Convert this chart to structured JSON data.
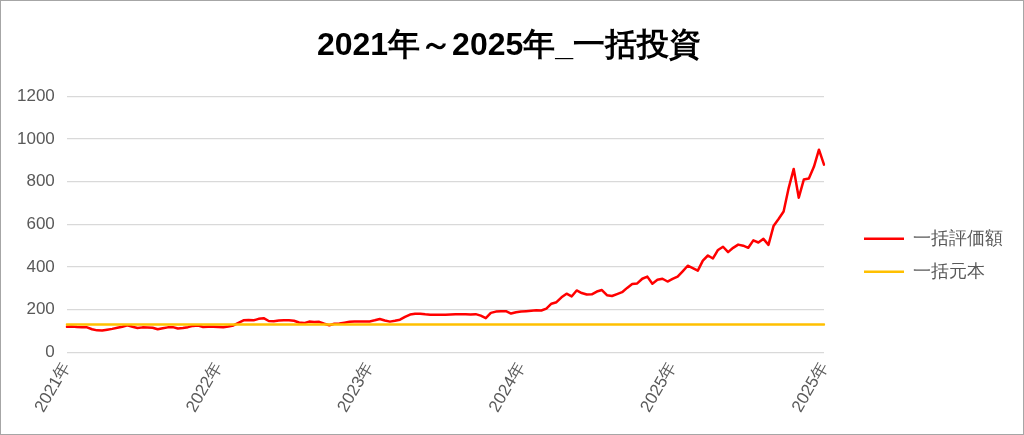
{
  "chart_data": {
    "type": "line",
    "title": "2021年～2025年_一括投資",
    "categories": [
      "2021年",
      null,
      null,
      null,
      null,
      null,
      null,
      null,
      null,
      null,
      null,
      null,
      null,
      null,
      null,
      null,
      null,
      null,
      null,
      null,
      null,
      null,
      null,
      null,
      null,
      null,
      null,
      null,
      null,
      null,
      "2022年",
      null,
      null,
      null,
      null,
      null,
      null,
      null,
      null,
      null,
      null,
      null,
      null,
      null,
      null,
      null,
      null,
      null,
      null,
      null,
      null,
      null,
      null,
      null,
      null,
      null,
      null,
      null,
      null,
      null,
      "2023年",
      null,
      null,
      null,
      null,
      null,
      null,
      null,
      null,
      null,
      null,
      null,
      null,
      null,
      null,
      null,
      null,
      null,
      null,
      null,
      null,
      null,
      null,
      null,
      null,
      null,
      null,
      null,
      null,
      null,
      "2024年",
      null,
      null,
      null,
      null,
      null,
      null,
      null,
      null,
      null,
      null,
      null,
      null,
      null,
      null,
      null,
      null,
      null,
      null,
      null,
      null,
      null,
      null,
      null,
      null,
      null,
      null,
      null,
      null,
      null,
      "2025年",
      null,
      null,
      null,
      null,
      null,
      null,
      null,
      null,
      null,
      null,
      null,
      null,
      null,
      null,
      null,
      null,
      null,
      null,
      null,
      null,
      null,
      null,
      null,
      null,
      null,
      null,
      null,
      null,
      null,
      "2025年"
    ],
    "series": [
      {
        "name": "一括評価額",
        "color": "#ff0000",
        "values": [
          120,
          121,
          119,
          118,
          117,
          108,
          103,
          102,
          106,
          110,
          115,
          120,
          127,
          120,
          114,
          117,
          116,
          115,
          108,
          113,
          117,
          118,
          112,
          114,
          118,
          124,
          126,
          119,
          120,
          120,
          119,
          118,
          121,
          126,
          138,
          150,
          151,
          150,
          157,
          160,
          147,
          146,
          149,
          150,
          150,
          148,
          140,
          137,
          144,
          142,
          143,
          134,
          127,
          134,
          135,
          139,
          143,
          144,
          145,
          145,
          145,
          150,
          156,
          149,
          144,
          148,
          153,
          166,
          177,
          181,
          181,
          178,
          176,
          176,
          176,
          176,
          177,
          178,
          179,
          178,
          177,
          179,
          172,
          160,
          185,
          191,
          193,
          193,
          182,
          188,
          191,
          193,
          195,
          197,
          196,
          205,
          228,
          235,
          258,
          275,
          262,
          290,
          278,
          271,
          272,
          285,
          292,
          268,
          264,
          273,
          282,
          302,
          320,
          323,
          345,
          355,
          322,
          340,
          345,
          332,
          344,
          355,
          380,
          406,
          395,
          383,
          430,
          454,
          440,
          480,
          495,
          470,
          490,
          505,
          500,
          490,
          525,
          515,
          532,
          504,
          592,
          625,
          660,
          770,
          860,
          725,
          810,
          815,
          870,
          950,
          880
        ]
      },
      {
        "name": "一括元本",
        "color": "#ffc000",
        "values": [
          130,
          130,
          130,
          130,
          130,
          130,
          130,
          130,
          130,
          130,
          130,
          130,
          130,
          130,
          130,
          130,
          130,
          130,
          130,
          130,
          130,
          130,
          130,
          130,
          130,
          130,
          130,
          130,
          130,
          130,
          130,
          130,
          130,
          130,
          130,
          130,
          130,
          130,
          130,
          130,
          130,
          130,
          130,
          130,
          130,
          130,
          130,
          130,
          130,
          130,
          130,
          130,
          130,
          130,
          130,
          130,
          130,
          130,
          130,
          130,
          130,
          130,
          130,
          130,
          130,
          130,
          130,
          130,
          130,
          130,
          130,
          130,
          130,
          130,
          130,
          130,
          130,
          130,
          130,
          130,
          130,
          130,
          130,
          130,
          130,
          130,
          130,
          130,
          130,
          130,
          130,
          130,
          130,
          130,
          130,
          130,
          130,
          130,
          130,
          130,
          130,
          130,
          130,
          130,
          130,
          130,
          130,
          130,
          130,
          130,
          130,
          130,
          130,
          130,
          130,
          130,
          130,
          130,
          130,
          130,
          130,
          130,
          130,
          130,
          130,
          130,
          130,
          130,
          130,
          130,
          130,
          130,
          130,
          130,
          130,
          130,
          130,
          130,
          130,
          130,
          130,
          130,
          130,
          130,
          130,
          130,
          130,
          130,
          130,
          130,
          130
        ]
      }
    ],
    "ylim": [
      0,
      1200
    ],
    "yticks": [
      0,
      200,
      400,
      600,
      800,
      1000,
      1200
    ],
    "grid": "y",
    "legend": "right",
    "marker": "none"
  }
}
